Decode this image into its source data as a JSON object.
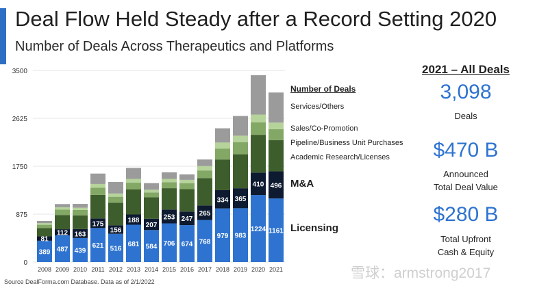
{
  "header": {
    "title": "Deal Flow Held Steady after a Record Setting 2020",
    "subtitle": "Number of Deals Across Therapeutics and Platforms"
  },
  "legend": {
    "heading": "Number of Deals",
    "items": [
      "Services/Others",
      "Sales/Co-Promotion",
      "Pipeline/Business Unit Purchases",
      "Academic Research/Licenses"
    ],
    "ma_label": "M&A",
    "licensing_label": "Licensing"
  },
  "summary": {
    "heading": "2021 – All Deals",
    "deals_value": "3,098",
    "deals_caption": "Deals",
    "announced_value": "$470 B",
    "announced_caption_line1": "Announced",
    "announced_caption_line2": "Total Deal Value",
    "upfront_value": "$280 B",
    "upfront_caption_line1": "Total Upfront",
    "upfront_caption_line2": "Cash & Equity"
  },
  "source": "Source DealForma.com Database. Data as of 2/1/2022",
  "watermark": "雪球：armstrong2017",
  "colors": {
    "accent": "#2e6fc4",
    "licensing": "#2e73d0",
    "ma": "#0d1a30",
    "academic": "#3e5d2c",
    "pipeline": "#83a765",
    "sales": "#b5d39a",
    "services": "#9b9b9b"
  },
  "chart_data": {
    "type": "bar",
    "stacked": true,
    "categories": [
      "2008",
      "2009",
      "2010",
      "2011",
      "2012",
      "2013",
      "2014",
      "2015",
      "2016",
      "2017",
      "2018",
      "2019",
      "2020",
      "2021"
    ],
    "ylim": [
      0,
      3500
    ],
    "yticks": [
      "0",
      "875",
      "1750",
      "2625",
      "3500"
    ],
    "series": [
      {
        "name": "Licensing",
        "values": [
          389,
          487,
          439,
          621,
          516,
          681,
          584,
          706,
          674,
          768,
          979,
          983,
          1224,
          1161
        ],
        "labels": true
      },
      {
        "name": "M&A",
        "values": [
          81,
          112,
          163,
          175,
          156,
          188,
          207,
          253,
          247,
          265,
          334,
          365,
          410,
          496
        ],
        "labels": true
      },
      {
        "name": "Academic Research/Licenses",
        "values": [
          150,
          260,
          250,
          430,
          410,
          460,
          390,
          390,
          410,
          500,
          560,
          620,
          690,
          570
        ],
        "labels": false
      },
      {
        "name": "Pipeline/Business Unit Purchases",
        "values": [
          60,
          100,
          100,
          130,
          110,
          120,
          90,
          110,
          110,
          140,
          200,
          220,
          230,
          200
        ],
        "labels": false
      },
      {
        "name": "Sales/Co-Promotion",
        "values": [
          30,
          40,
          40,
          70,
          60,
          70,
          50,
          60,
          60,
          80,
          110,
          120,
          140,
          120
        ],
        "labels": false
      },
      {
        "name": "Services/Others",
        "values": [
          40,
          60,
          70,
          190,
          210,
          200,
          120,
          120,
          100,
          120,
          260,
          360,
          720,
          550
        ],
        "labels": false
      }
    ]
  }
}
